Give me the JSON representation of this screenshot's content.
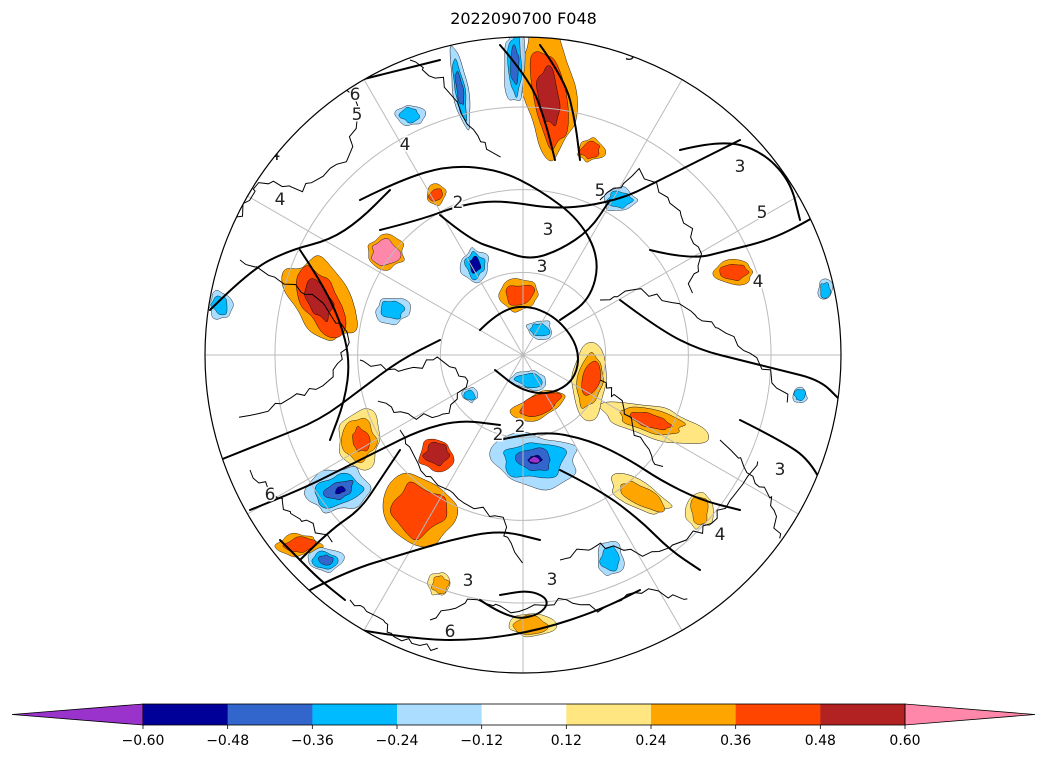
{
  "chart_data": {
    "type": "heatmap",
    "title": "2022090700 F048",
    "projection": "north-polar-stereographic",
    "grid": true,
    "colorbar": {
      "orientation": "horizontal",
      "extend": "both",
      "ticks": [
        "−0.60",
        "−0.48",
        "−0.36",
        "−0.24",
        "−0.12",
        "0.12",
        "0.24",
        "0.36",
        "0.48",
        "0.60"
      ],
      "levels": [
        -0.6,
        -0.48,
        -0.36,
        -0.24,
        -0.12,
        0.12,
        0.24,
        0.36,
        0.48,
        0.6
      ],
      "colors": [
        "#9933cc",
        "#000099",
        "#3366cc",
        "#00bbff",
        "#aaddff",
        "#ffffff",
        "#ffe680",
        "#ffa500",
        "#ff4500",
        "#b22222",
        "#ff88aa"
      ]
    },
    "contour_labels": [
      "2",
      "2",
      "3",
      "3",
      "3",
      "3",
      "4",
      "4",
      "4",
      "5",
      "5",
      "5",
      "6",
      "6",
      "3",
      "2",
      "3",
      "4",
      "6",
      "5",
      "4"
    ],
    "colors": {
      "contour": "#000000",
      "grid": "#bbbbbb"
    }
  }
}
